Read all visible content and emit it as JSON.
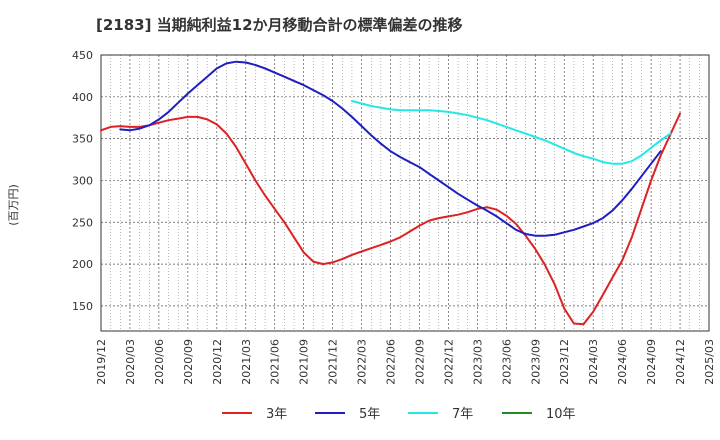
{
  "chart_data": {
    "type": "line",
    "title": "[2183]  当期純利益12か月移動合計の標準偏差の推移",
    "ylabel": "(百万円)",
    "xlabel": "",
    "ylim": [
      120,
      450
    ],
    "yticks": [
      150,
      200,
      250,
      300,
      350,
      400,
      450
    ],
    "grid": true,
    "legend_position": "bottom",
    "x_tick_labels": [
      "2019/12",
      "2020/03",
      "2020/06",
      "2020/09",
      "2020/12",
      "2021/03",
      "2021/06",
      "2021/09",
      "2021/12",
      "2022/03",
      "2022/06",
      "2022/09",
      "2022/12",
      "2023/03",
      "2023/06",
      "2023/09",
      "2023/12",
      "2024/03",
      "2024/06",
      "2024/09",
      "2024/12",
      "2025/03"
    ],
    "x_start": "2019-12",
    "series": [
      {
        "name": "3年",
        "color": "#dd2222",
        "start": "2019-12",
        "values": [
          360,
          364,
          365,
          364,
          364,
          366,
          369,
          372,
          374,
          376,
          376,
          373,
          367,
          356,
          340,
          320,
          300,
          282,
          266,
          250,
          232,
          214,
          203,
          200,
          202,
          206,
          211,
          215,
          219,
          223,
          227,
          232,
          239,
          246,
          252,
          255,
          257,
          259,
          262,
          266,
          268,
          265,
          258,
          248,
          234,
          218,
          199,
          176,
          147,
          129,
          128,
          143,
          163,
          184,
          204,
          232,
          266,
          300,
          330,
          355,
          380
        ]
      },
      {
        "name": "5年",
        "color": "#1f1fbf",
        "start": "2020-02",
        "values": [
          361,
          360,
          362,
          366,
          373,
          382,
          393,
          404,
          414,
          424,
          434,
          440,
          442,
          441,
          438,
          434,
          429,
          424,
          419,
          414,
          408,
          402,
          395,
          386,
          376,
          365,
          354,
          344,
          335,
          328,
          322,
          316,
          308,
          300,
          292,
          284,
          277,
          270,
          264,
          257,
          249,
          241,
          236,
          234,
          234,
          235,
          238,
          241,
          245,
          249,
          255,
          264,
          276,
          290,
          305,
          320,
          335
        ]
      },
      {
        "name": "7年",
        "color": "#22e8e8",
        "start": "2022-02",
        "values": [
          395,
          392,
          389,
          387,
          385,
          384,
          384,
          384,
          384,
          383,
          382,
          380,
          378,
          375,
          372,
          368,
          364,
          360,
          356,
          352,
          348,
          343,
          338,
          333,
          329,
          326,
          322,
          320,
          320,
          323,
          330,
          339,
          348,
          356
        ]
      },
      {
        "name": "10年",
        "color": "#228b22",
        "start": "2022-02",
        "values": []
      }
    ]
  }
}
